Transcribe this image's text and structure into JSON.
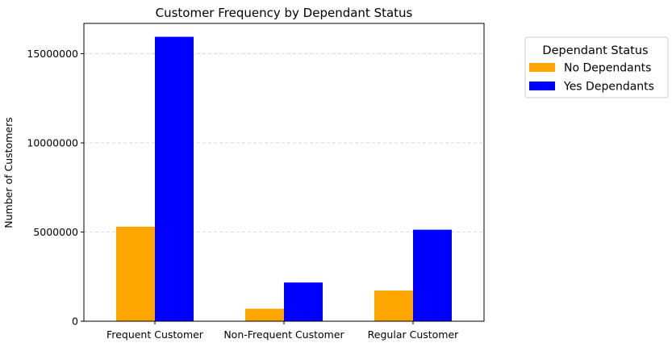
{
  "chart_data": {
    "type": "bar",
    "title": "Customer Frequency by Dependant Status",
    "xlabel": "",
    "ylabel": "Number of Customers",
    "categories": [
      "Frequent Customer",
      "Non-Frequent Customer",
      "Regular Customer"
    ],
    "series": [
      {
        "name": "No Dependants",
        "color": "#ffa500",
        "values": [
          5300000,
          700000,
          1720000
        ]
      },
      {
        "name": "Yes Dependants",
        "color": "#0000ff",
        "values": [
          15950000,
          2170000,
          5130000
        ]
      }
    ],
    "ylim": [
      0,
      16700000
    ],
    "yticks": [
      0,
      5000000,
      10000000,
      15000000
    ],
    "ytick_labels": [
      "0",
      "5000000",
      "10000000",
      "15000000"
    ],
    "grid": "y-dashed",
    "legend_title": "Dependant Status",
    "legend_placement": "outside-right-top"
  }
}
